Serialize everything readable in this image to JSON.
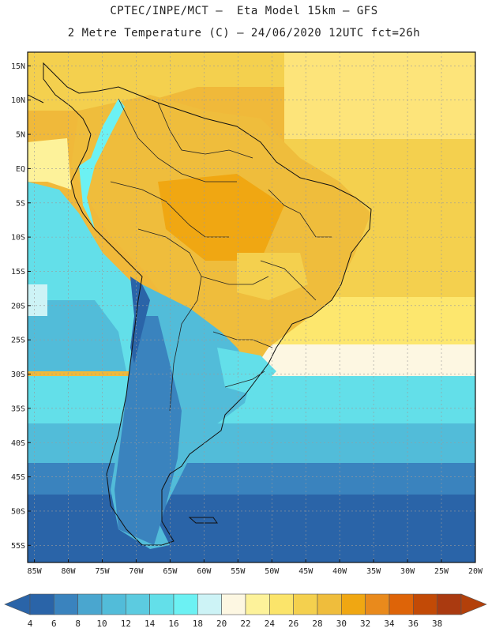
{
  "header": {
    "line1": "CPTEC/INPE/MCT –  Eta Model 15km – GFS",
    "line2": "2 Metre Temperature (C) – 24/06/2020 12UTC fct=26h"
  },
  "map": {
    "lat_labels": [
      "15N",
      "10N",
      "5N",
      "EQ",
      "5S",
      "10S",
      "15S",
      "20S",
      "25S",
      "30S",
      "35S",
      "40S",
      "45S",
      "50S",
      "55S"
    ],
    "lon_labels": [
      "85W",
      "80W",
      "75W",
      "70W",
      "65W",
      "60W",
      "55W",
      "50W",
      "45W",
      "40W",
      "35W",
      "30W",
      "25W",
      "20W"
    ],
    "lat_values": [
      15,
      10,
      5,
      0,
      -5,
      -10,
      -15,
      -20,
      -25,
      -30,
      -35,
      -40,
      -45,
      -50,
      -55
    ],
    "lon_values": [
      -85,
      -80,
      -75,
      -70,
      -65,
      -60,
      -55,
      -50,
      -45,
      -40,
      -35,
      -30,
      -25,
      -20
    ],
    "lat_range": [
      -57.5,
      17
    ],
    "lon_range": [
      -86,
      -20
    ],
    "gridlines": true
  },
  "colorbar": {
    "labels": [
      "4",
      "6",
      "8",
      "10",
      "12",
      "14",
      "16",
      "18",
      "20",
      "22",
      "24",
      "26",
      "28",
      "30",
      "32",
      "34",
      "36",
      "38"
    ],
    "colors": [
      "#2a64a8",
      "#3a83be",
      "#4aa6cf",
      "#52bcd9",
      "#5ccbe0",
      "#63dfe9",
      "#6cf1f3",
      "#cdf3f6",
      "#fdf7e2",
      "#fdf29a",
      "#fbe46a",
      "#f4d04e",
      "#efbd3c",
      "#f0a712",
      "#e98a1c",
      "#de6408",
      "#c24a06",
      "#aa3a10"
    ],
    "arrow_left_color": "#2a64a8",
    "arrow_right_color": "#b3400a"
  }
}
